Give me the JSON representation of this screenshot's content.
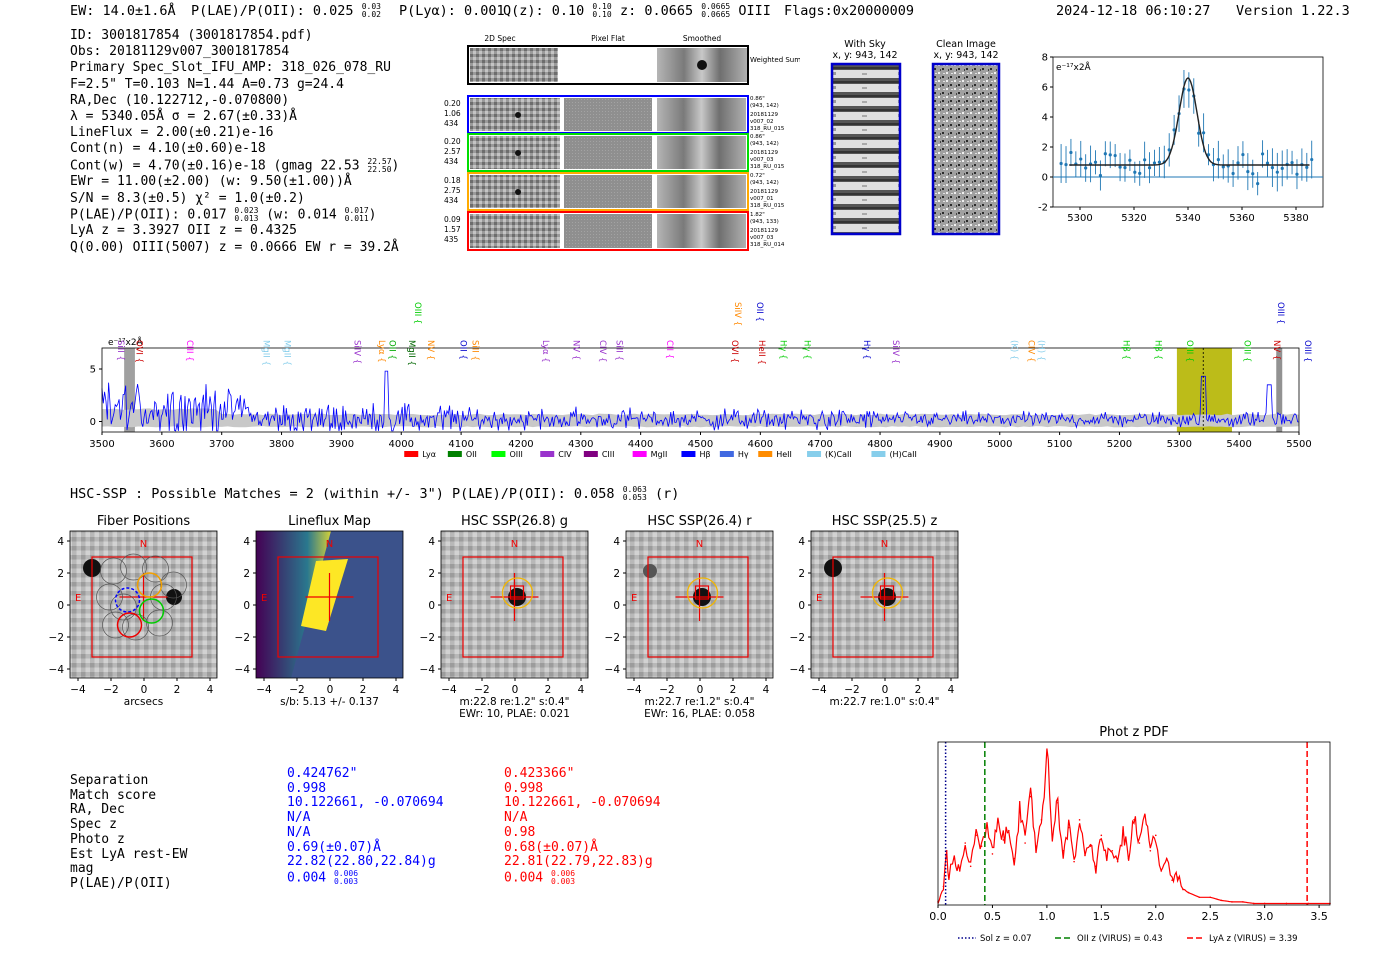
{
  "header": {
    "ew": "EW: 14.0±1.6Å",
    "plae": "P(LAE)/P(OII): 0.025",
    "plae_hi": "0.03",
    "plae_lo": "0.02",
    "plya": "P(Lyα): 0.001",
    "qz": "Q(z): 0.10",
    "qz_hi": "0.10",
    "qz_lo": "0.10",
    "z": "z: 0.0665",
    "z_hi": "0.0665",
    "z_lo": "0.0665",
    "z_line": "OIII",
    "flags": "Flags:0x20000009",
    "datetime": "2024-12-18 06:10:27",
    "version": "Version 1.22.3"
  },
  "info": {
    "l1": "ID: 3001817854 (3001817854.pdf)",
    "l2": "Obs: 20181129v007_3001817854",
    "l3": "Primary Spec_Slot_IFU_AMP: 318_026_078_RU",
    "l4": "F=2.5\"  T=0.103  N=1.44  A=0.73  g=24.4",
    "l5": "RA,Dec (10.122712,-0.070800)",
    "l6": "λ = 5340.05Å  σ = 2.67(±0.33)Å",
    "l7": "LineFlux = 2.00(±0.21)e-16",
    "l8": "Cont(n) = 4.10(±0.60)e-18",
    "l9": "Cont(w) = 4.70(±0.16)e-18 (gmag 22.53",
    "l9_hi": "22.57",
    "l9_lo": "22.50",
    "l9_end": ")",
    "l10": "EWr = 11.00(±2.00) (w: 9.50(±1.00))Å",
    "l11": "S/N = 8.3(±0.5)  χ² = 1.0(±0.2)",
    "l12": "P(LAE)/P(OII): 0.017",
    "l12_hi": "0.023",
    "l12_lo": "0.013",
    "l12_mid": " (w: 0.014",
    "l12_hi2": "0.017",
    "l12_lo2": "0.011",
    "l12_end": ")",
    "l13": "LyA z = 3.3927  OII z = 0.4325",
    "l14": "Q(0.00) OIII(5007) z = 0.0666  EW r = 39.2Å"
  },
  "cutouts": {
    "col1": "2D Spec",
    "col2": "Pixel Flat",
    "col3": "Smoothed",
    "weighted": "Weighted Sum",
    "rows": [
      {
        "n1": "0.20",
        "n2": "1.06",
        "n3": "434",
        "r1": "0.86\"",
        "r2": "(943, 142)",
        "r3": "20181129",
        "r4": "v007_02",
        "r5": "318_RU_015"
      },
      {
        "n1": "0.20",
        "n2": "2.57",
        "n3": "434",
        "r1": "0.86\"",
        "r2": "(943, 142)",
        "r3": "20181129",
        "r4": "v007_03",
        "r5": "318_RU_015"
      },
      {
        "n1": "0.18",
        "n2": "2.75",
        "n3": "434",
        "r1": "0.72\"",
        "r2": "(943, 142)",
        "r3": "20181129",
        "r4": "v007_01",
        "r5": "318_RU_015"
      },
      {
        "n1": "0.09",
        "n2": "1.57",
        "n3": "435",
        "r1": "1.82\"",
        "r2": "(943, 133)",
        "r3": "20181129",
        "r4": "v007_03",
        "r5": "318_RU_014"
      }
    ],
    "with_sky": "With Sky",
    "with_sky_xy": "x, y: 943, 142",
    "clean": "Clean Image",
    "clean_xy": "x, y: 943, 142"
  },
  "zoom_chart_data": {
    "type": "line",
    "xlim": [
      5290,
      5390
    ],
    "ylim": [
      -2,
      8
    ],
    "xticks": [
      5300,
      5320,
      5340,
      5360,
      5380
    ],
    "yticks": [
      -2,
      0,
      2,
      4,
      6,
      8
    ],
    "unit_label": "e⁻¹⁷x2Å"
  },
  "spectrum": {
    "unit_label": "e⁻¹⁷x2Å",
    "xlim": [
      3500,
      5500
    ],
    "ylim": [
      -1,
      7
    ],
    "yticks": [
      0,
      5
    ],
    "xticks": [
      3500,
      3600,
      3700,
      3800,
      3900,
      4000,
      4100,
      4200,
      4300,
      4400,
      4500,
      4600,
      4700,
      4800,
      4900,
      5000,
      5100,
      5200,
      5300,
      5400,
      5500
    ],
    "line_markers": [
      {
        "label": "SiII",
        "x": 3522,
        "row": 0,
        "color": "#9933cc"
      },
      {
        "label": "OVI",
        "x": 3553,
        "row": 1,
        "color": "#cc0000"
      },
      {
        "label": "CIII",
        "x": 3637,
        "row": 0,
        "color": "#ff00ff"
      },
      {
        "label": "MgII",
        "x": 3765,
        "row": 0,
        "color": "#87ceeb"
      },
      {
        "label": "MgII",
        "x": 3800,
        "row": 0,
        "color": "#87ceeb"
      },
      {
        "label": "SiIV",
        "x": 3917,
        "row": 0,
        "color": "#9933cc"
      },
      {
        "label": "Lyα",
        "x": 3958,
        "row": 0,
        "color": "#ff8800"
      },
      {
        "label": "OII",
        "x": 3975,
        "row": 0,
        "color": "#00aa00"
      },
      {
        "label": "MgII",
        "x": 4008,
        "row": 0,
        "color": "#006600"
      },
      {
        "label": "OIII",
        "x": 4018,
        "row": 2,
        "color": "#00cc00"
      },
      {
        "label": "NV",
        "x": 4040,
        "row": 0,
        "color": "#ff8800"
      },
      {
        "label": "OII",
        "x": 4094,
        "row": 0,
        "color": "#0000cc"
      },
      {
        "label": "SiII",
        "x": 4114,
        "row": 0,
        "color": "#ff8800"
      },
      {
        "label": "Lyα",
        "x": 4232,
        "row": 0,
        "color": "#9933cc"
      },
      {
        "label": "NV",
        "x": 4283,
        "row": 0,
        "color": "#9933cc"
      },
      {
        "label": "CIV",
        "x": 4327,
        "row": 0,
        "color": "#9933cc"
      },
      {
        "label": "SiII",
        "x": 4355,
        "row": 0,
        "color": "#9933cc"
      },
      {
        "label": "CII",
        "x": 4439,
        "row": 0,
        "color": "#ff00ff"
      },
      {
        "label": "OVI",
        "x": 4548,
        "row": 0,
        "color": "#cc0000"
      },
      {
        "label": "SiIV",
        "x": 4553,
        "row": 2,
        "color": "#ff8800"
      },
      {
        "label": "OII",
        "x": 4589,
        "row": 2,
        "color": "#0000cc"
      },
      {
        "label": "HeII",
        "x": 4593,
        "row": 0,
        "color": "#cc0000"
      },
      {
        "label": "Hγ",
        "x": 4629,
        "row": 0,
        "color": "#00cc00"
      },
      {
        "label": "Hγ",
        "x": 4669,
        "row": 0,
        "color": "#00cc00"
      },
      {
        "label": "Hγ",
        "x": 4768,
        "row": 0,
        "color": "#0000cc"
      },
      {
        "label": "SiIV",
        "x": 4817,
        "row": 0,
        "color": "#9933cc"
      },
      {
        "label": "(K)",
        "x": 5015,
        "row": 0,
        "color": "#87ceeb"
      },
      {
        "label": "CIV",
        "x": 5043,
        "row": 0,
        "color": "#ff8800"
      },
      {
        "label": "(H)",
        "x": 5060,
        "row": 0,
        "color": "#87ceeb"
      },
      {
        "label": "Hβ",
        "x": 5202,
        "row": 0,
        "color": "#00cc00"
      },
      {
        "label": "Hβ",
        "x": 5255,
        "row": 0,
        "color": "#00cc00"
      },
      {
        "label": "OIII",
        "x": 5308,
        "row": 0,
        "color": "#00cc00"
      },
      {
        "label": "OIII",
        "x": 5404,
        "row": 0,
        "color": "#00cc00"
      },
      {
        "label": "NV",
        "x": 5453,
        "row": 0,
        "color": "#cc0000"
      },
      {
        "label": "OIII",
        "x": 5460,
        "row": 2,
        "color": "#0000cc"
      },
      {
        "label": "OIII",
        "x": 5505,
        "row": 0,
        "color": "#0000cc"
      }
    ],
    "legend": [
      {
        "label": "Lyα",
        "color": "#ff0000"
      },
      {
        "label": "OII",
        "color": "#008000"
      },
      {
        "label": "OIII",
        "color": "#00ff00"
      },
      {
        "label": "CIV",
        "color": "#9933cc"
      },
      {
        "label": "CIII",
        "color": "#800080"
      },
      {
        "label": "MgII",
        "color": "#ff00ff"
      },
      {
        "label": "Hβ",
        "color": "#0000ff"
      },
      {
        "label": "Hγ",
        "color": "#4169e1"
      },
      {
        "label": "HeII",
        "color": "#ff8c00"
      },
      {
        "label": "(K)CaII",
        "color": "#87ceeb"
      },
      {
        "label": "(H)CaII",
        "color": "#87ceeb"
      }
    ]
  },
  "hsc": {
    "header": "HSC-SSP : Possible Matches = 2 (within +/- 3\")  P(LAE)/P(OII): 0.058",
    "header_hi": "0.063",
    "header_lo": "0.053",
    "header_end": "(r)",
    "panels": [
      {
        "title": "Fiber Positions",
        "l1": "arcsecs",
        "l2": "",
        "l3": ""
      },
      {
        "title": "Lineflux Map",
        "l1": "s/b: 5.13 +/- 0.137",
        "l2": "",
        "l3": ""
      },
      {
        "title": "HSC SSP(26.8) g",
        "l1": "m:22.8  re:1.2\"  s:0.4\"",
        "l2": "EWr: 10, PLAE: 0.021",
        "l3": ""
      },
      {
        "title": "HSC SSP(26.4) r",
        "l1": "m:22.7  re:1.2\"  s:0.4\"",
        "l2": "EWr: 16, PLAE: 0.058",
        "l3": ""
      },
      {
        "title": "HSC SSP(25.5) z",
        "l1": "m:22.7  re:1.0\"  s:0.4\"",
        "l2": "",
        "l3": ""
      }
    ],
    "axis_ticks": [
      "4",
      "2",
      "0",
      "−2",
      "−4"
    ],
    "n_label": "N",
    "e_label": "E"
  },
  "matches": {
    "labels": [
      "Separation",
      "Match score",
      "RA, Dec",
      "Spec z",
      "Photo z",
      "Est LyA rest-EW",
      "mag",
      "P(LAE)/P(OII)"
    ],
    "m1": {
      "separation": "0.424762\"",
      "score": "0.998",
      "radec": "10.122661, -0.070694",
      "specz": "N/A",
      "photoz": "N/A",
      "ew": "0.69(±0.07)Å",
      "mag": "22.82(22.80,22.84)g",
      "plae": "0.004",
      "plae_hi": "0.006",
      "plae_lo": "0.003"
    },
    "m2": {
      "separation": "0.423366\"",
      "score": "0.998",
      "radec": "10.122661, -0.070694",
      "specz": "N/A",
      "photoz": "0.98",
      "ew": "0.68(±0.07)Å",
      "mag": "22.81(22.79,22.83)g",
      "plae": "0.004",
      "plae_hi": "0.006",
      "plae_lo": "0.003"
    }
  },
  "chart_data": {
    "type": "line",
    "title": "Phot z PDF",
    "xlim": [
      0.0,
      3.6
    ],
    "xticks": [
      0.0,
      0.5,
      1.0,
      1.5,
      2.0,
      2.5,
      3.0,
      3.5
    ],
    "xtick_labels": [
      "0.0",
      "0.5",
      "1.0",
      "1.5",
      "2.0",
      "2.5",
      "3.0",
      "3.5"
    ],
    "x": [
      0.0,
      0.05,
      0.08,
      0.1,
      0.15,
      0.2,
      0.25,
      0.3,
      0.35,
      0.4,
      0.45,
      0.5,
      0.55,
      0.6,
      0.65,
      0.7,
      0.75,
      0.8,
      0.85,
      0.9,
      0.95,
      1.0,
      1.05,
      1.1,
      1.15,
      1.2,
      1.25,
      1.3,
      1.35,
      1.4,
      1.45,
      1.5,
      1.55,
      1.6,
      1.65,
      1.7,
      1.75,
      1.8,
      1.85,
      1.9,
      1.95,
      2.0,
      2.05,
      2.1,
      2.15,
      2.2,
      2.25,
      2.3,
      2.4,
      2.5,
      2.6,
      2.7,
      2.8,
      2.9,
      3.0,
      3.2,
      3.4,
      3.6
    ],
    "values": [
      0.02,
      0.12,
      0.35,
      0.18,
      0.3,
      0.22,
      0.4,
      0.25,
      0.45,
      0.38,
      0.5,
      0.33,
      0.55,
      0.42,
      0.48,
      0.3,
      0.62,
      0.4,
      0.7,
      0.38,
      0.55,
      0.98,
      0.45,
      0.66,
      0.35,
      0.5,
      0.28,
      0.55,
      0.32,
      0.38,
      0.25,
      0.45,
      0.3,
      0.35,
      0.28,
      0.48,
      0.3,
      0.55,
      0.4,
      0.58,
      0.35,
      0.45,
      0.22,
      0.3,
      0.16,
      0.18,
      0.1,
      0.08,
      0.05,
      0.05,
      0.03,
      0.02,
      0.02,
      0.01,
      0.01,
      0.01,
      0.01,
      0.01
    ],
    "vlines": [
      {
        "x": 0.07,
        "label": "Sol z = 0.07",
        "color": "#00008b",
        "style": "dotted"
      },
      {
        "x": 0.43,
        "label": "OII z (VIRUS) = 0.43",
        "color": "#008000",
        "style": "dashed"
      },
      {
        "x": 3.39,
        "label": "LyA z (VIRUS) = 3.39",
        "color": "#ff0000",
        "style": "dashed"
      }
    ]
  }
}
